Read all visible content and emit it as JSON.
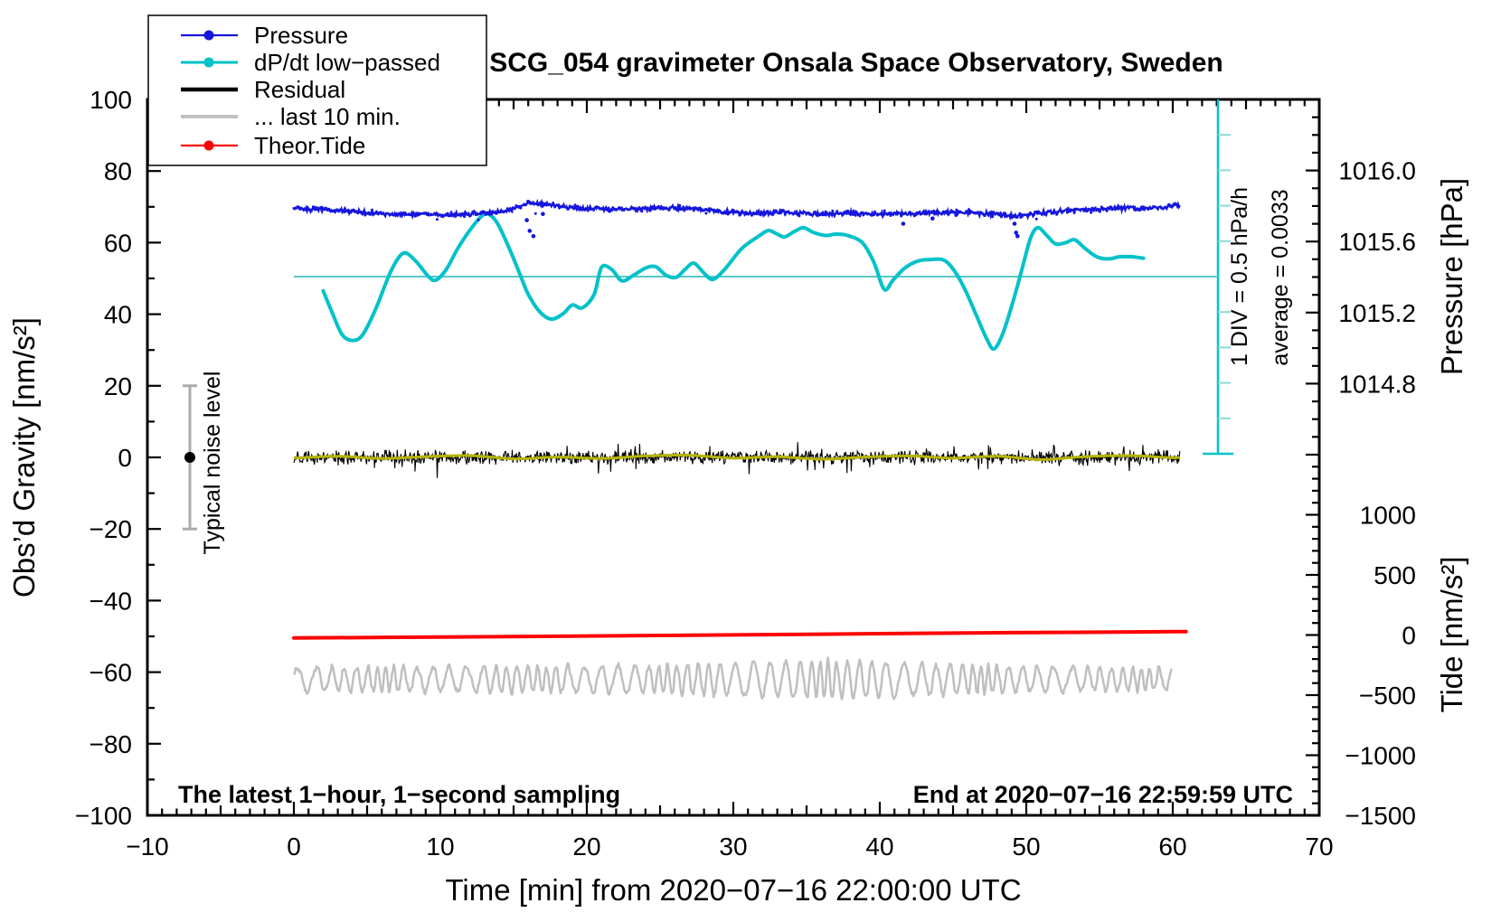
{
  "title": "SCG_054 gravimeter Onsala Space Observatory, Sweden",
  "annotations": {
    "bottom_left": "The latest 1−hour, 1−second sampling",
    "bottom_right": "End at 2020−07−16 22:59:59 UTC",
    "noise_label": "Typical noise level",
    "div_label": "1 DIV = 0.5 hPa/h",
    "avg_label": "average = 0.0033"
  },
  "axes": {
    "x": {
      "label": "Time [min] from 2020−07−16 22:00:00 UTC",
      "range": [
        -10,
        70
      ],
      "major": [
        {
          "v": -10,
          "label": "−10"
        },
        {
          "v": 0,
          "label": "0"
        },
        {
          "v": 10,
          "label": "10"
        },
        {
          "v": 20,
          "label": "20"
        },
        {
          "v": 30,
          "label": "30"
        },
        {
          "v": 40,
          "label": "40"
        },
        {
          "v": 50,
          "label": "50"
        },
        {
          "v": 60,
          "label": "60"
        },
        {
          "v": 70,
          "label": "70"
        }
      ],
      "medium_step": 5,
      "minor_step": 1
    },
    "gravity": {
      "label": "Obs’d Gravity [nm/s²]",
      "range": [
        -100,
        100
      ],
      "major": [
        {
          "v": 100,
          "label": "100"
        },
        {
          "v": 80,
          "label": "80"
        },
        {
          "v": 60,
          "label": "60"
        },
        {
          "v": 40,
          "label": "40"
        },
        {
          "v": 20,
          "label": "20"
        },
        {
          "v": 0,
          "label": "0"
        },
        {
          "v": -20,
          "label": "−20"
        },
        {
          "v": -40,
          "label": "−40"
        },
        {
          "v": -60,
          "label": "−60"
        },
        {
          "v": -80,
          "label": "−80"
        },
        {
          "v": -100,
          "label": "−100"
        }
      ],
      "minor_step": 10
    },
    "pressure": {
      "label": "Pressure [hPa]",
      "range": [
        1014.4,
        1016.4
      ],
      "major": [
        {
          "v": 1016.0,
          "label": "1016.0"
        },
        {
          "v": 1015.6,
          "label": "1015.6"
        },
        {
          "v": 1015.2,
          "label": "1015.2"
        },
        {
          "v": 1014.8,
          "label": "1014.8"
        }
      ],
      "minor_step": 0.1
    },
    "tide": {
      "label": "Tide [nm/s²]",
      "range": [
        -1500,
        1500
      ],
      "major": [
        {
          "v": 1000,
          "label": "1000"
        },
        {
          "v": 500,
          "label": "500"
        },
        {
          "v": 0,
          "label": "0"
        },
        {
          "v": -500,
          "label": "−500"
        },
        {
          "v": -1000,
          "label": "−1000"
        },
        {
          "v": -1500,
          "label": "−1500"
        }
      ],
      "minor_step": 100
    }
  },
  "legend": {
    "items": [
      {
        "label": "Pressure",
        "color": "#1616dd",
        "marker": true,
        "sample_width": 2.2
      },
      {
        "label": "dP/dt low−passed",
        "color": "#00c2c8",
        "marker": true,
        "sample_width": 3
      },
      {
        "label": "Residual",
        "color": "#000000",
        "marker": false,
        "sample_width": 4.5
      },
      {
        "label": "... last 10 min.",
        "color": "#c2c2c2",
        "marker": false,
        "sample_width": 4
      },
      {
        "label": "Theor.Tide",
        "color": "#fe0000",
        "marker": true,
        "sample_width": 2.2
      }
    ]
  },
  "chart_data": {
    "type": "line",
    "title": "SCG_054 gravimeter Onsala Space Observatory, Sweden",
    "x_unit": "minutes from 2020-07-16 22:00:00 UTC",
    "x_range": [
      -10,
      70
    ],
    "series": [
      {
        "name": "Pressure",
        "unit": "hPa",
        "axis": "pressure",
        "style": "noisy_dots",
        "color": "#1616dd",
        "points": [
          [
            0,
            1015.785
          ],
          [
            1.5,
            1015.78
          ],
          [
            3,
            1015.775
          ],
          [
            4.5,
            1015.765
          ],
          [
            6,
            1015.755
          ],
          [
            7.5,
            1015.75
          ],
          [
            9,
            1015.755
          ],
          [
            10.5,
            1015.75
          ],
          [
            12,
            1015.755
          ],
          [
            13.5,
            1015.76
          ],
          [
            14.5,
            1015.775
          ],
          [
            15.5,
            1015.8
          ],
          [
            16.3,
            1015.815
          ],
          [
            17.2,
            1015.81
          ],
          [
            18,
            1015.8
          ],
          [
            19.5,
            1015.79
          ],
          [
            21,
            1015.785
          ],
          [
            22.5,
            1015.78
          ],
          [
            24,
            1015.785
          ],
          [
            25.5,
            1015.79
          ],
          [
            27,
            1015.785
          ],
          [
            28.5,
            1015.775
          ],
          [
            30,
            1015.765
          ],
          [
            31.5,
            1015.76
          ],
          [
            33,
            1015.765
          ],
          [
            34.5,
            1015.76
          ],
          [
            36,
            1015.755
          ],
          [
            38,
            1015.76
          ],
          [
            40,
            1015.755
          ],
          [
            42,
            1015.755
          ],
          [
            44,
            1015.765
          ],
          [
            46,
            1015.76
          ],
          [
            48,
            1015.755
          ],
          [
            49.3,
            1015.745
          ],
          [
            50,
            1015.75
          ],
          [
            51,
            1015.76
          ],
          [
            52,
            1015.77
          ],
          [
            53,
            1015.775
          ],
          [
            54,
            1015.78
          ],
          [
            55.5,
            1015.785
          ],
          [
            57,
            1015.79
          ],
          [
            58.5,
            1015.785
          ],
          [
            60,
            1015.8
          ],
          [
            60.5,
            1015.805
          ]
        ],
        "outliers": [
          [
            15.9,
            1015.72
          ],
          [
            16.1,
            1015.66
          ],
          [
            16.35,
            1015.63
          ],
          [
            17.0,
            1015.755
          ],
          [
            41.6,
            1015.7
          ],
          [
            43.6,
            1015.73
          ],
          [
            49.2,
            1015.7
          ],
          [
            49.3,
            1015.65
          ],
          [
            49.4,
            1015.63
          ]
        ]
      },
      {
        "name": "dP/dt low−passed",
        "unit": "hPa/h",
        "axis": "dpdt",
        "style": "smooth",
        "color": "#00c2c8",
        "scale_note": "1 DIV = 0.5 hPa/h",
        "average": 0.0033,
        "points": [
          [
            2.0,
            -0.2
          ],
          [
            2.6,
            -0.5
          ],
          [
            3.3,
            -0.82
          ],
          [
            4.0,
            -0.9
          ],
          [
            4.7,
            -0.82
          ],
          [
            5.6,
            -0.45
          ],
          [
            6.5,
            0.02
          ],
          [
            7.2,
            0.28
          ],
          [
            7.7,
            0.33
          ],
          [
            8.4,
            0.2
          ],
          [
            9.2,
            0.0
          ],
          [
            9.7,
            -0.05
          ],
          [
            10.4,
            0.1
          ],
          [
            11.2,
            0.4
          ],
          [
            12.0,
            0.65
          ],
          [
            12.8,
            0.85
          ],
          [
            13.3,
            0.88
          ],
          [
            13.9,
            0.75
          ],
          [
            14.7,
            0.4
          ],
          [
            15.4,
            0.05
          ],
          [
            16.0,
            -0.25
          ],
          [
            16.8,
            -0.5
          ],
          [
            17.6,
            -0.6
          ],
          [
            18.4,
            -0.52
          ],
          [
            19.0,
            -0.4
          ],
          [
            19.7,
            -0.44
          ],
          [
            20.5,
            -0.25
          ],
          [
            21.0,
            0.13
          ],
          [
            21.7,
            0.1
          ],
          [
            22.4,
            -0.06
          ],
          [
            23.2,
            0.02
          ],
          [
            24.0,
            0.12
          ],
          [
            24.7,
            0.14
          ],
          [
            25.4,
            0.02
          ],
          [
            26.1,
            -0.01
          ],
          [
            26.7,
            0.1
          ],
          [
            27.3,
            0.19
          ],
          [
            28.0,
            0.05
          ],
          [
            28.6,
            -0.04
          ],
          [
            29.4,
            0.1
          ],
          [
            30.6,
            0.4
          ],
          [
            31.8,
            0.58
          ],
          [
            32.4,
            0.65
          ],
          [
            33.0,
            0.6
          ],
          [
            33.5,
            0.56
          ],
          [
            34.2,
            0.64
          ],
          [
            34.8,
            0.69
          ],
          [
            35.5,
            0.62
          ],
          [
            36.3,
            0.58
          ],
          [
            37.0,
            0.6
          ],
          [
            37.8,
            0.58
          ],
          [
            38.8,
            0.48
          ],
          [
            39.6,
            0.2
          ],
          [
            40.3,
            -0.18
          ],
          [
            40.9,
            -0.05
          ],
          [
            41.7,
            0.12
          ],
          [
            42.6,
            0.22
          ],
          [
            43.4,
            0.24
          ],
          [
            44.4,
            0.23
          ],
          [
            45.2,
            0.05
          ],
          [
            45.9,
            -0.22
          ],
          [
            46.6,
            -0.55
          ],
          [
            47.3,
            -0.88
          ],
          [
            47.8,
            -1.02
          ],
          [
            48.4,
            -0.8
          ],
          [
            49.1,
            -0.35
          ],
          [
            49.7,
            0.1
          ],
          [
            50.3,
            0.55
          ],
          [
            50.8,
            0.69
          ],
          [
            51.4,
            0.58
          ],
          [
            52.0,
            0.46
          ],
          [
            52.7,
            0.48
          ],
          [
            53.3,
            0.52
          ],
          [
            54.0,
            0.4
          ],
          [
            54.8,
            0.28
          ],
          [
            55.6,
            0.25
          ],
          [
            56.4,
            0.28
          ],
          [
            57.2,
            0.28
          ],
          [
            58.0,
            0.26
          ]
        ]
      },
      {
        "name": "Residual",
        "unit": "nm/s2",
        "axis": "gravity",
        "style": "noise_band",
        "color": "#000000",
        "center": 0,
        "typical_amplitude": 2.2,
        "max_spike": 5.8,
        "t_range": [
          0,
          60.5
        ]
      },
      {
        "name": "Residual smoothed",
        "unit": "nm/s2",
        "axis": "gravity",
        "style": "smooth",
        "color": "#b5b400",
        "points": [
          [
            0,
            -0.2
          ],
          [
            3,
            0.3
          ],
          [
            6,
            -0.3
          ],
          [
            9,
            0.2
          ],
          [
            12,
            0.5
          ],
          [
            15,
            -0.4
          ],
          [
            18,
            0.1
          ],
          [
            21,
            -0.3
          ],
          [
            24,
            0.4
          ],
          [
            27,
            0.6
          ],
          [
            30,
            -0.2
          ],
          [
            33,
            0.2
          ],
          [
            36,
            -0.5
          ],
          [
            39,
            0.1
          ],
          [
            42,
            0.4
          ],
          [
            45,
            -0.2
          ],
          [
            48,
            0.3
          ],
          [
            51,
            -0.6
          ],
          [
            54,
            0.2
          ],
          [
            57,
            0.5
          ],
          [
            60,
            -0.1
          ],
          [
            60.5,
            0
          ]
        ]
      },
      {
        "name": "... last 10 min.",
        "unit": "nm/s2",
        "axis": "gravity",
        "style": "oscillation",
        "color": "#bfbfbf",
        "center": -62,
        "period_min": 1.0,
        "t_range": [
          0,
          60
        ],
        "amplitude_profile": [
          [
            0,
            3.2
          ],
          [
            8,
            3.4
          ],
          [
            16,
            3.6
          ],
          [
            24,
            3.8
          ],
          [
            30,
            4.6
          ],
          [
            36,
            5.2
          ],
          [
            40,
            5.0
          ],
          [
            44,
            4.2
          ],
          [
            48,
            3.6
          ],
          [
            54,
            3.3
          ],
          [
            60,
            3.2
          ]
        ]
      },
      {
        "name": "Theor.Tide",
        "unit": "nm/s2",
        "axis": "tide",
        "style": "smooth_line",
        "color": "#fe0000",
        "points": [
          [
            0,
            -25
          ],
          [
            10,
            -17
          ],
          [
            20,
            -8
          ],
          [
            30,
            1
          ],
          [
            40,
            11
          ],
          [
            50,
            20
          ],
          [
            60,
            28
          ],
          [
            60.5,
            28
          ]
        ]
      }
    ],
    "dpdt_zero_line": {
      "value": 0,
      "from_t": 0,
      "color": "#58c8c8"
    },
    "div_scale_bar": {
      "color": "#00c2c8",
      "divisions": 10,
      "div_value_hpa_per_h": 0.5
    },
    "noise_marker": {
      "t": -7.1,
      "value": 0,
      "half_range": 20,
      "label": "Typical noise level",
      "bar_color": "#ababab",
      "dot_color": "#000000"
    }
  }
}
